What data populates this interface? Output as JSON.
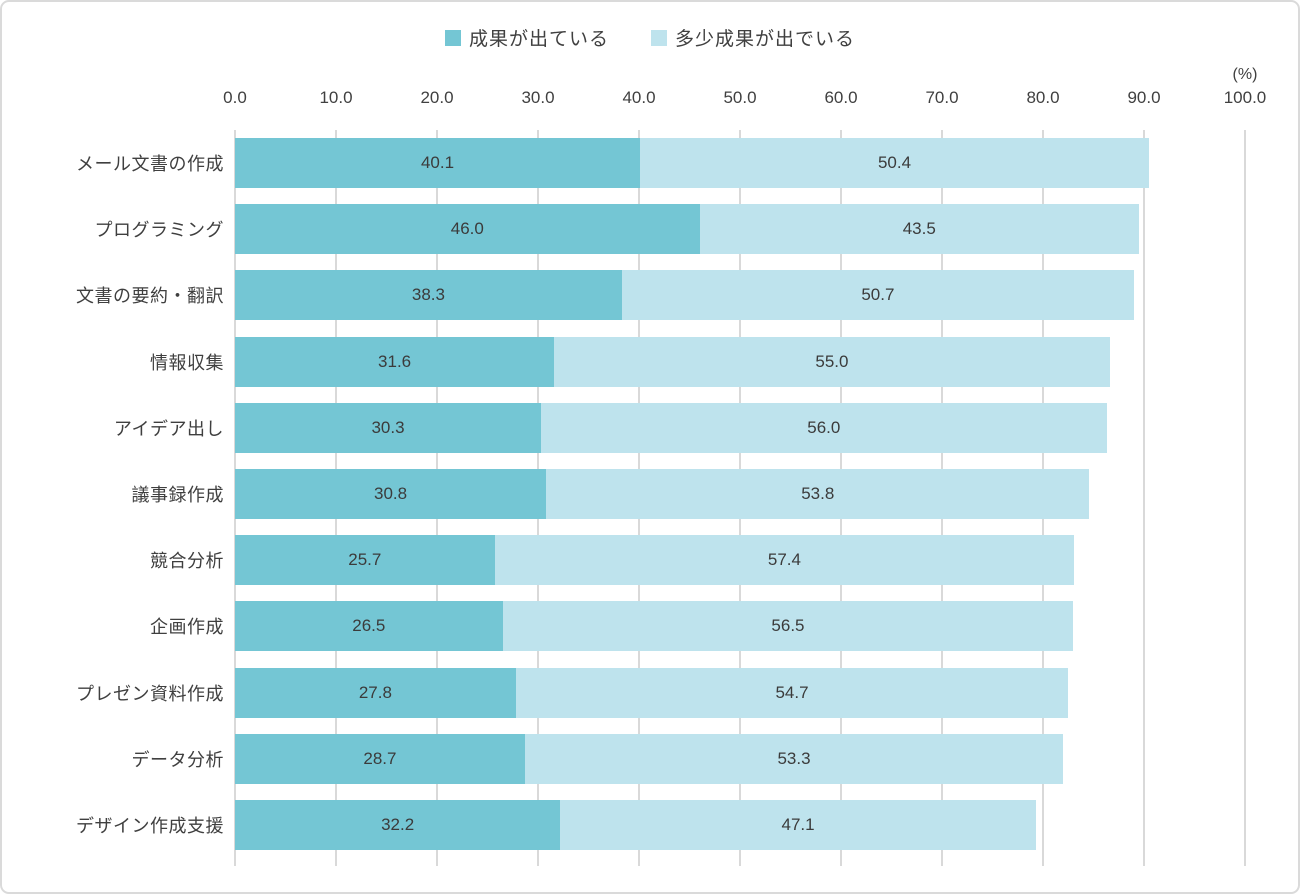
{
  "chart_data": {
    "type": "bar",
    "orientation": "horizontal",
    "stacked": true,
    "title": "",
    "unit_label": "(%)",
    "legend_position": "top",
    "grid": true,
    "value_label_decimals": 1,
    "xlim": [
      0,
      100
    ],
    "tick_labels": [
      "0.0",
      "10.0",
      "20.0",
      "30.0",
      "40.0",
      "50.0",
      "60.0",
      "70.0",
      "80.0",
      "90.0",
      "100.0"
    ],
    "categories": [
      "メール文書の作成",
      "プログラミング",
      "文書の要約・翻訳",
      "情報収集",
      "アイデア出し",
      "議事録作成",
      "競合分析",
      "企画作成",
      "プレゼン資料作成",
      "データ分析",
      "デザイン作成支援"
    ],
    "series": [
      {
        "name": "成果が出ている",
        "color": "#74C6D4",
        "values": [
          40.1,
          46.0,
          38.3,
          31.6,
          30.3,
          30.8,
          25.7,
          26.5,
          27.8,
          28.7,
          32.2
        ]
      },
      {
        "name": "多少成果が出でいる",
        "color": "#BEE3ED",
        "values": [
          50.4,
          43.5,
          50.7,
          55.0,
          56.0,
          53.8,
          57.4,
          56.5,
          54.7,
          53.3,
          47.1
        ]
      }
    ]
  },
  "colors": {
    "gridline": "#D9D9D9",
    "text": "#404040",
    "background": "#FFFFFF",
    "frame_border": "#DADADA"
  }
}
